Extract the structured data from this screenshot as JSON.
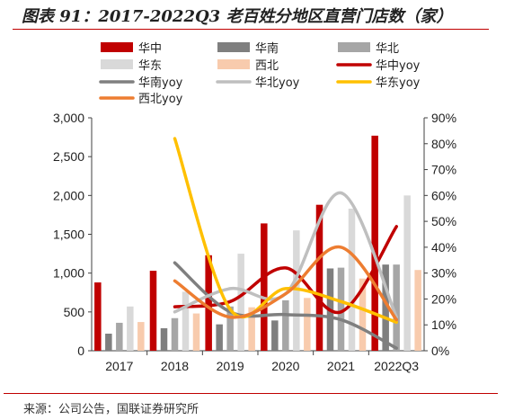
{
  "title": "图表 91：2017-2022Q3 老百姓分地区直营门店数（家）",
  "source": "来源：公司公告，国联证券研究所",
  "chart_data": {
    "type": "bar",
    "categories": [
      "2017",
      "2018",
      "2019",
      "2020",
      "2021",
      "2022Q3"
    ],
    "y_left_ticks": [
      "0",
      "500",
      "1,000",
      "1,500",
      "2,000",
      "2,500",
      "3,000"
    ],
    "y_right_ticks": [
      "0%",
      "10%",
      "20%",
      "30%",
      "40%",
      "50%",
      "60%",
      "70%",
      "80%",
      "90%"
    ],
    "ylim_left": [
      0,
      3000
    ],
    "ylim_right": [
      0,
      0.9
    ],
    "series": [
      {
        "name": "华中",
        "kind": "bar",
        "color": "#c00000",
        "values": [
          880,
          1030,
          1230,
          1640,
          1880,
          2770
        ]
      },
      {
        "name": "华南",
        "kind": "bar",
        "color": "#7f7f7f",
        "values": [
          220,
          290,
          340,
          390,
          1060,
          1110
        ]
      },
      {
        "name": "华北",
        "kind": "bar",
        "color": "#a6a6a6",
        "values": [
          360,
          420,
          570,
          650,
          1070,
          1110
        ]
      },
      {
        "name": "华东",
        "kind": "bar",
        "color": "#d9d9d9",
        "values": [
          570,
          760,
          1250,
          1550,
          1830,
          2000
        ]
      },
      {
        "name": "西北",
        "kind": "bar",
        "color": "#f8cbad",
        "values": [
          370,
          480,
          560,
          680,
          930,
          1040
        ]
      },
      {
        "name": "华中yoy",
        "kind": "line",
        "color": "#c00000",
        "values": [
          null,
          0.17,
          0.19,
          0.32,
          0.15,
          0.48
        ]
      },
      {
        "name": "华南yoy",
        "kind": "line",
        "color": "#7f7f7f",
        "values": [
          null,
          0.34,
          0.15,
          0.14,
          0.12,
          0.01
        ]
      },
      {
        "name": "华北yoy",
        "kind": "line",
        "color": "#bfbfbf",
        "values": [
          null,
          0.15,
          0.24,
          0.22,
          0.61,
          0.13
        ]
      },
      {
        "name": "华东yoy",
        "kind": "line",
        "color": "#ffc000",
        "values": [
          null,
          0.82,
          0.16,
          0.24,
          0.19,
          0.11
        ]
      },
      {
        "name": "西北yoy",
        "kind": "line",
        "color": "#ed7d31",
        "values": [
          null,
          0.27,
          0.13,
          0.22,
          0.4,
          0.12
        ]
      }
    ],
    "grid": false
  }
}
